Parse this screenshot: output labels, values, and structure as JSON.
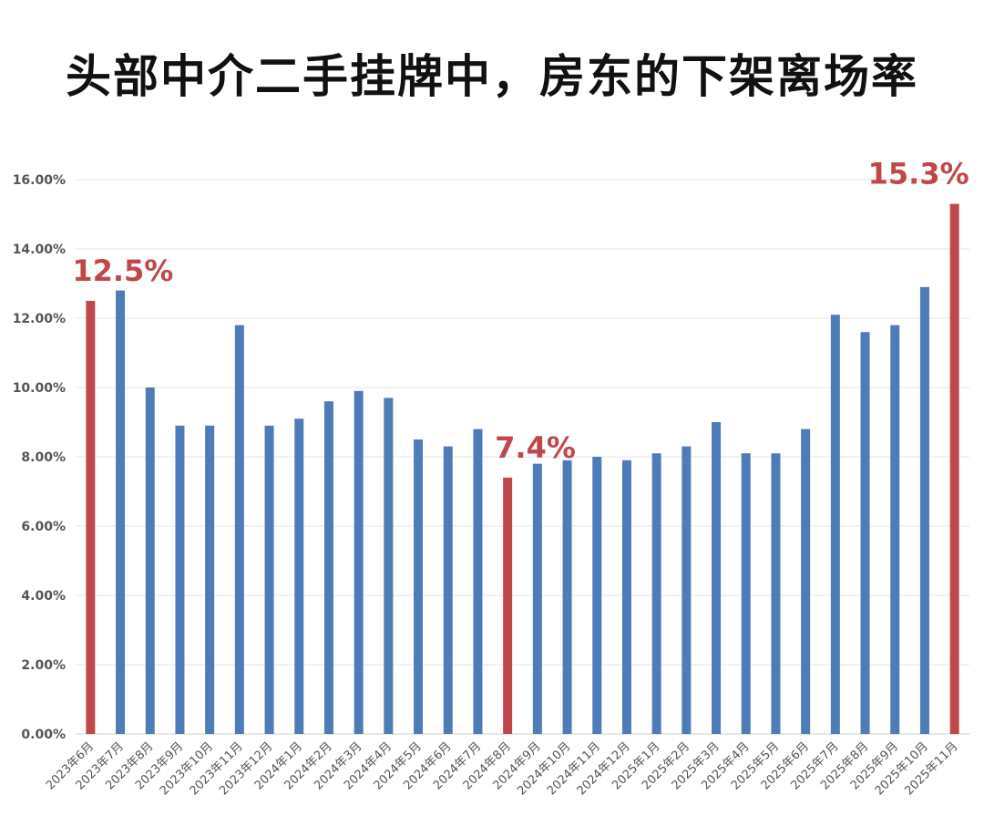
{
  "title": "头部中介二手挂牌中，房东的下架离场率",
  "colors": {
    "normal": "#4f7cb6",
    "highlight": "#c0474a"
  },
  "chart_data": {
    "type": "bar",
    "title": "头部中介二手挂牌中，房东的下架离场率",
    "xlabel": "",
    "ylabel": "",
    "ylim": [
      0,
      16
    ],
    "yticks": [
      "0.00%",
      "2.00%",
      "4.00%",
      "6.00%",
      "8.00%",
      "10.00%",
      "12.00%",
      "14.00%",
      "16.00%"
    ],
    "grid": true,
    "categories": [
      "2023年6月",
      "2023年7月",
      "2023年8月",
      "2023年9月",
      "2023年10月",
      "2023年11月",
      "2023年12月",
      "2024年1月",
      "2024年2月",
      "2024年3月",
      "2024年4月",
      "2024年5月",
      "2024年6月",
      "2024年7月",
      "2024年8月",
      "2024年9月",
      "2024年10月",
      "2024年11月",
      "2024年12月",
      "2025年1月",
      "2025年2月",
      "2025年3月",
      "2025年4月",
      "2025年5月",
      "2025年6月",
      "2025年7月",
      "2025年8月",
      "2025年9月",
      "2025年10月",
      "2025年11月"
    ],
    "values": [
      12.5,
      12.8,
      10.0,
      8.9,
      8.9,
      11.8,
      8.9,
      9.1,
      9.6,
      9.9,
      9.7,
      8.5,
      8.3,
      8.8,
      7.4,
      7.8,
      7.9,
      8.0,
      7.9,
      8.1,
      8.3,
      9.0,
      8.1,
      8.1,
      8.8,
      12.1,
      11.6,
      11.8,
      12.9,
      15.3
    ],
    "highlights": [
      0,
      14,
      29
    ],
    "annotations": [
      {
        "index": 0,
        "text": "12.5%"
      },
      {
        "index": 14,
        "text": "7.4%"
      },
      {
        "index": 29,
        "text": "15.3%"
      }
    ]
  }
}
